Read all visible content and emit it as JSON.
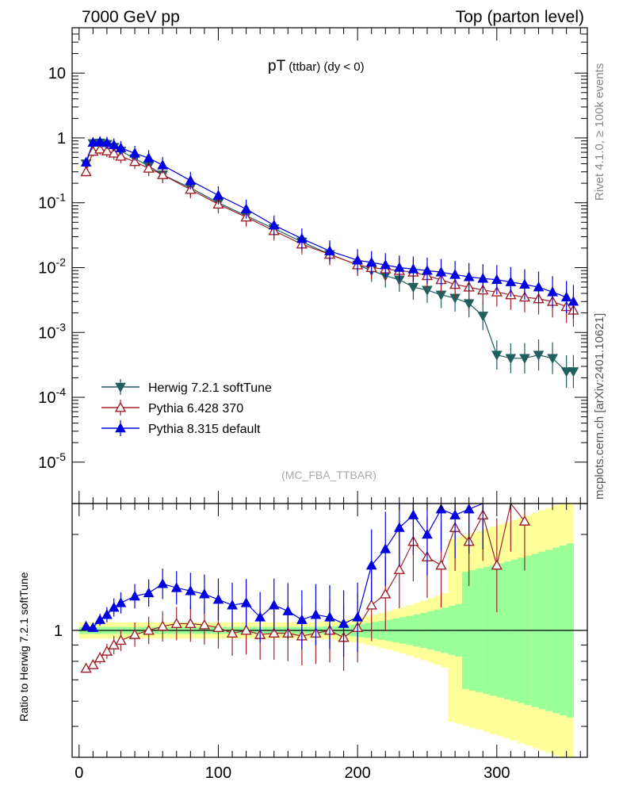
{
  "header": {
    "energy": "7000 GeV pp",
    "process": "Top (parton level)"
  },
  "side": {
    "rivet": "Rivet 4.1.0, ≥ 100k events",
    "mcplots": "mcplots.cern.ch [arXiv:2401.10621]"
  },
  "plot": {
    "title_main": "pT",
    "title_sub": "(ttbar) (dy < 0)",
    "analysis": "(MC_FBA_TTBAR)"
  },
  "legend": [
    {
      "name": "Herwig 7.2.1 softTune",
      "color": "#1f5f5f",
      "marker": "triangle-down"
    },
    {
      "name": "Pythia 6.428 370",
      "color": "#a0202a",
      "marker": "triangle-up-open"
    },
    {
      "name": "Pythia 8.315 default",
      "color": "#0000e0",
      "marker": "triangle-up"
    }
  ],
  "colors": {
    "band_inner": "#99ff99",
    "band_outer": "#ffff99"
  },
  "chart_data": [
    {
      "type": "line",
      "panel": "main",
      "title": "pT (ttbar) (dy < 0)",
      "xlabel": "",
      "ylabel": "",
      "yscale": "log",
      "xlim": [
        -5,
        365
      ],
      "ylim": [
        2.3e-06,
        50
      ],
      "x_ticks": [
        "0",
        "100",
        "200",
        "300"
      ],
      "y_ticks": [
        "10",
        "1",
        "10^-1",
        "10^-2",
        "10^-3",
        "10^-4",
        "10^-5"
      ],
      "series": [
        {
          "name": "Herwig 7.2.1 softTune",
          "x": [
            5,
            10,
            15,
            20,
            25,
            30,
            40,
            50,
            60,
            80,
            100,
            120,
            140,
            160,
            180,
            200,
            210,
            220,
            230,
            240,
            250,
            260,
            270,
            280,
            290,
            300,
            310,
            320,
            330,
            340,
            350,
            355
          ],
          "y": [
            0.4,
            0.82,
            0.84,
            0.8,
            0.72,
            0.63,
            0.48,
            0.37,
            0.27,
            0.17,
            0.1,
            0.063,
            0.04,
            0.025,
            0.016,
            0.011,
            0.009,
            0.0075,
            0.0065,
            0.005,
            0.0045,
            0.0038,
            0.0034,
            0.0028,
            0.0018,
            0.00045,
            0.0004,
            0.0004,
            0.00045,
            0.0004,
            0.00025,
            0.00025
          ]
        },
        {
          "name": "Pythia 6.428 370",
          "x": [
            5,
            10,
            15,
            20,
            25,
            30,
            40,
            50,
            60,
            80,
            100,
            120,
            140,
            160,
            180,
            200,
            210,
            220,
            230,
            240,
            250,
            260,
            270,
            280,
            290,
            300,
            310,
            320,
            330,
            340,
            350,
            355
          ],
          "y": [
            0.3,
            0.62,
            0.67,
            0.63,
            0.58,
            0.52,
            0.43,
            0.34,
            0.27,
            0.16,
            0.095,
            0.06,
            0.037,
            0.023,
            0.016,
            0.011,
            0.01,
            0.0095,
            0.009,
            0.0085,
            0.0075,
            0.0065,
            0.0055,
            0.005,
            0.0045,
            0.0042,
            0.0038,
            0.0035,
            0.0033,
            0.003,
            0.0025,
            0.0022
          ]
        },
        {
          "name": "Pythia 8.315 default",
          "x": [
            5,
            10,
            15,
            20,
            25,
            30,
            40,
            50,
            60,
            80,
            100,
            120,
            140,
            160,
            180,
            200,
            210,
            220,
            230,
            240,
            250,
            260,
            270,
            280,
            290,
            300,
            310,
            320,
            330,
            340,
            350,
            355
          ],
          "y": [
            0.42,
            0.85,
            0.87,
            0.84,
            0.78,
            0.7,
            0.58,
            0.49,
            0.38,
            0.22,
            0.13,
            0.08,
            0.045,
            0.028,
            0.018,
            0.013,
            0.012,
            0.011,
            0.01,
            0.0095,
            0.009,
            0.0085,
            0.0078,
            0.0072,
            0.0068,
            0.0065,
            0.006,
            0.0055,
            0.005,
            0.0042,
            0.0035,
            0.003
          ]
        }
      ]
    },
    {
      "type": "line",
      "panel": "ratio",
      "ylabel": "Ratio to Herwig 7.2.1 softTune",
      "yscale": "log",
      "xlim": [
        -5,
        365
      ],
      "ylim": [
        0.4,
        2.5
      ],
      "x_ticks": [
        "0",
        "100",
        "200",
        "300"
      ],
      "y_ticks": [
        "1"
      ],
      "series": [
        {
          "name": "Pythia 6.428 370",
          "x": [
            5,
            10,
            15,
            20,
            25,
            30,
            40,
            50,
            60,
            70,
            80,
            90,
            100,
            110,
            120,
            130,
            140,
            150,
            160,
            170,
            180,
            190,
            200,
            210,
            220,
            230,
            240,
            250,
            260,
            270,
            280,
            290,
            300,
            310,
            320
          ],
          "y": [
            0.76,
            0.78,
            0.82,
            0.86,
            0.9,
            0.93,
            0.97,
            1.0,
            1.03,
            1.05,
            1.05,
            1.04,
            1.02,
            0.98,
            1.0,
            0.97,
            0.98,
            0.98,
            0.96,
            0.98,
            1.0,
            0.95,
            1.02,
            1.2,
            1.3,
            1.55,
            1.9,
            1.7,
            1.6,
            2.1,
            1.9,
            2.3,
            1.6,
            2.5,
            2.2
          ]
        },
        {
          "name": "Pythia 8.315 default",
          "x": [
            5,
            10,
            15,
            20,
            25,
            30,
            40,
            50,
            60,
            70,
            80,
            90,
            100,
            110,
            120,
            130,
            140,
            150,
            160,
            170,
            180,
            190,
            200,
            210,
            220,
            230,
            240,
            250,
            260,
            270,
            280,
            290
          ],
          "y": [
            1.03,
            1.02,
            1.08,
            1.12,
            1.18,
            1.22,
            1.28,
            1.31,
            1.4,
            1.36,
            1.33,
            1.3,
            1.25,
            1.2,
            1.22,
            1.1,
            1.2,
            1.15,
            1.08,
            1.12,
            1.1,
            1.05,
            1.1,
            1.6,
            1.8,
            2.1,
            2.3,
            2.0,
            2.4,
            2.3,
            2.4,
            2.5
          ]
        }
      ]
    }
  ]
}
